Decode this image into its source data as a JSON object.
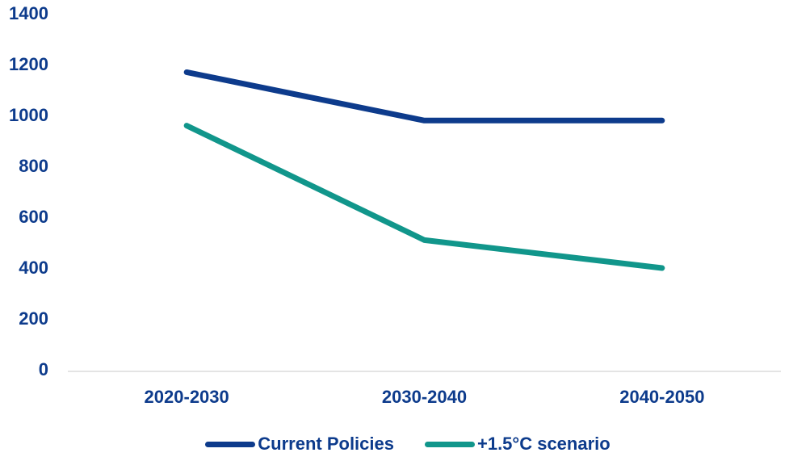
{
  "chart_data": {
    "type": "line",
    "title": "",
    "categories": [
      "2020-2030",
      "2030-2040",
      "2040-2050"
    ],
    "series": [
      {
        "name": "Current Policies",
        "color": "#0d3b8c",
        "values": [
          1170,
          980,
          980
        ]
      },
      {
        "name": "+1.5°C scenario",
        "color": "#11968b",
        "values": [
          960,
          510,
          400
        ]
      }
    ],
    "xlabel": "",
    "ylabel": "",
    "ylim": [
      0,
      1400
    ],
    "yticks": [
      0,
      200,
      400,
      600,
      800,
      1000,
      1200,
      1400
    ],
    "grid": false,
    "legend_position": "bottom"
  },
  "colors": {
    "label_text": "#0d3b8c",
    "baseline": "#e4e4e4",
    "background": "#ffffff"
  }
}
